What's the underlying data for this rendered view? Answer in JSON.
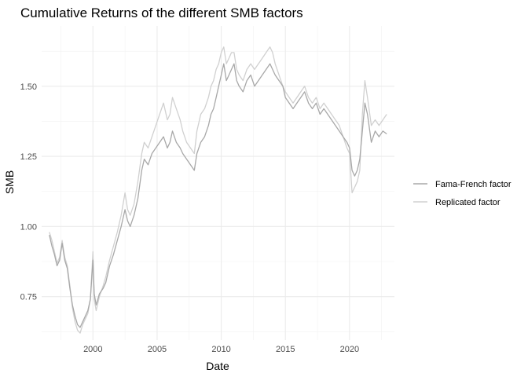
{
  "chart_data": {
    "type": "line",
    "title": "Cumulative Returns of the different SMB factors",
    "xlabel": "Date",
    "ylabel": "SMB",
    "xlim": [
      1996.0,
      2023.5
    ],
    "ylim": [
      0.595,
      1.715
    ],
    "x_ticks": [
      2000,
      2005,
      2010,
      2015,
      2020
    ],
    "y_ticks": [
      0.75,
      1.0,
      1.25,
      1.5
    ],
    "y_tick_labels": [
      "0.75",
      "1.00",
      "1.25",
      "1.50"
    ],
    "grid": true,
    "legend_position": "right",
    "series": [
      {
        "name": "Fama-French factor",
        "color": "#a8a8a8",
        "x": [
          1996.6,
          1996.8,
          1997.0,
          1997.2,
          1997.4,
          1997.6,
          1997.8,
          1998.0,
          1998.2,
          1998.4,
          1998.6,
          1998.8,
          1999.0,
          1999.2,
          1999.4,
          1999.6,
          1999.8,
          2000.0,
          2000.1,
          2000.25,
          2000.5,
          2000.8,
          2001.0,
          2001.3,
          2001.6,
          2001.9,
          2002.2,
          2002.5,
          2002.7,
          2002.9,
          2003.2,
          2003.5,
          2003.8,
          2004.0,
          2004.3,
          2004.6,
          2004.9,
          2005.2,
          2005.5,
          2005.8,
          2006.0,
          2006.2,
          2006.5,
          2006.8,
          2007.0,
          2007.3,
          2007.6,
          2007.9,
          2008.1,
          2008.4,
          2008.7,
          2009.0,
          2009.2,
          2009.4,
          2009.6,
          2009.8,
          2010.0,
          2010.2,
          2010.4,
          2010.6,
          2010.8,
          2011.0,
          2011.2,
          2011.4,
          2011.7,
          2012.0,
          2012.3,
          2012.6,
          2012.9,
          2013.2,
          2013.5,
          2013.8,
          2014.0,
          2014.2,
          2014.5,
          2014.8,
          2015.0,
          2015.3,
          2015.6,
          2015.9,
          2016.2,
          2016.5,
          2016.8,
          2017.1,
          2017.4,
          2017.7,
          2018.0,
          2018.3,
          2018.6,
          2018.9,
          2019.2,
          2019.5,
          2019.8,
          2020.0,
          2020.2,
          2020.4,
          2020.6,
          2020.8,
          2021.0,
          2021.2,
          2021.4,
          2021.7,
          2022.0,
          2022.3,
          2022.6,
          2022.9
        ],
        "values": [
          0.97,
          0.93,
          0.9,
          0.86,
          0.88,
          0.94,
          0.88,
          0.85,
          0.78,
          0.72,
          0.68,
          0.65,
          0.64,
          0.66,
          0.68,
          0.7,
          0.74,
          0.88,
          0.76,
          0.72,
          0.76,
          0.78,
          0.8,
          0.86,
          0.9,
          0.95,
          1.0,
          1.06,
          1.02,
          1.0,
          1.04,
          1.1,
          1.2,
          1.24,
          1.22,
          1.26,
          1.28,
          1.3,
          1.32,
          1.28,
          1.3,
          1.34,
          1.3,
          1.28,
          1.26,
          1.24,
          1.22,
          1.2,
          1.26,
          1.3,
          1.32,
          1.36,
          1.4,
          1.42,
          1.46,
          1.5,
          1.54,
          1.58,
          1.52,
          1.54,
          1.56,
          1.58,
          1.52,
          1.5,
          1.48,
          1.52,
          1.54,
          1.5,
          1.52,
          1.54,
          1.56,
          1.58,
          1.56,
          1.54,
          1.52,
          1.5,
          1.46,
          1.44,
          1.42,
          1.44,
          1.46,
          1.48,
          1.44,
          1.42,
          1.44,
          1.4,
          1.42,
          1.4,
          1.38,
          1.36,
          1.34,
          1.32,
          1.3,
          1.28,
          1.2,
          1.18,
          1.2,
          1.24,
          1.34,
          1.44,
          1.4,
          1.3,
          1.34,
          1.32,
          1.34,
          1.33
        ]
      },
      {
        "name": "Replicated factor",
        "color": "#d0d0d0",
        "x": [
          1996.6,
          1996.8,
          1997.0,
          1997.2,
          1997.4,
          1997.6,
          1997.8,
          1998.0,
          1998.2,
          1998.4,
          1998.6,
          1998.8,
          1999.0,
          1999.2,
          1999.4,
          1999.6,
          1999.8,
          2000.0,
          2000.1,
          2000.25,
          2000.5,
          2000.8,
          2001.0,
          2001.3,
          2001.6,
          2001.9,
          2002.2,
          2002.5,
          2002.7,
          2002.9,
          2003.2,
          2003.5,
          2003.8,
          2004.0,
          2004.3,
          2004.6,
          2004.9,
          2005.2,
          2005.5,
          2005.8,
          2006.0,
          2006.2,
          2006.5,
          2006.8,
          2007.0,
          2007.3,
          2007.6,
          2007.9,
          2008.1,
          2008.4,
          2008.7,
          2009.0,
          2009.2,
          2009.4,
          2009.6,
          2009.8,
          2010.0,
          2010.2,
          2010.4,
          2010.6,
          2010.8,
          2011.0,
          2011.2,
          2011.4,
          2011.7,
          2012.0,
          2012.3,
          2012.6,
          2012.9,
          2013.2,
          2013.5,
          2013.8,
          2014.0,
          2014.2,
          2014.5,
          2014.8,
          2015.0,
          2015.3,
          2015.6,
          2015.9,
          2016.2,
          2016.5,
          2016.8,
          2017.1,
          2017.4,
          2017.7,
          2018.0,
          2018.3,
          2018.6,
          2018.9,
          2019.2,
          2019.5,
          2019.8,
          2020.0,
          2020.2,
          2020.4,
          2020.6,
          2020.8,
          2021.0,
          2021.2,
          2021.4,
          2021.7,
          2022.0,
          2022.3,
          2022.6,
          2022.9
        ],
        "values": [
          0.98,
          0.95,
          0.91,
          0.87,
          0.89,
          0.95,
          0.89,
          0.86,
          0.79,
          0.71,
          0.66,
          0.63,
          0.62,
          0.65,
          0.67,
          0.69,
          0.74,
          0.91,
          0.74,
          0.7,
          0.75,
          0.79,
          0.82,
          0.88,
          0.93,
          0.98,
          1.04,
          1.12,
          1.06,
          1.04,
          1.08,
          1.16,
          1.26,
          1.3,
          1.28,
          1.32,
          1.36,
          1.4,
          1.44,
          1.38,
          1.4,
          1.46,
          1.42,
          1.38,
          1.34,
          1.3,
          1.28,
          1.26,
          1.34,
          1.4,
          1.42,
          1.46,
          1.5,
          1.52,
          1.56,
          1.58,
          1.62,
          1.64,
          1.58,
          1.6,
          1.62,
          1.62,
          1.56,
          1.54,
          1.52,
          1.56,
          1.58,
          1.56,
          1.58,
          1.6,
          1.62,
          1.64,
          1.62,
          1.58,
          1.54,
          1.5,
          1.48,
          1.46,
          1.44,
          1.46,
          1.48,
          1.5,
          1.46,
          1.44,
          1.46,
          1.42,
          1.44,
          1.42,
          1.4,
          1.38,
          1.36,
          1.32,
          1.28,
          1.26,
          1.12,
          1.14,
          1.16,
          1.2,
          1.4,
          1.52,
          1.46,
          1.36,
          1.38,
          1.36,
          1.38,
          1.4
        ]
      }
    ]
  }
}
